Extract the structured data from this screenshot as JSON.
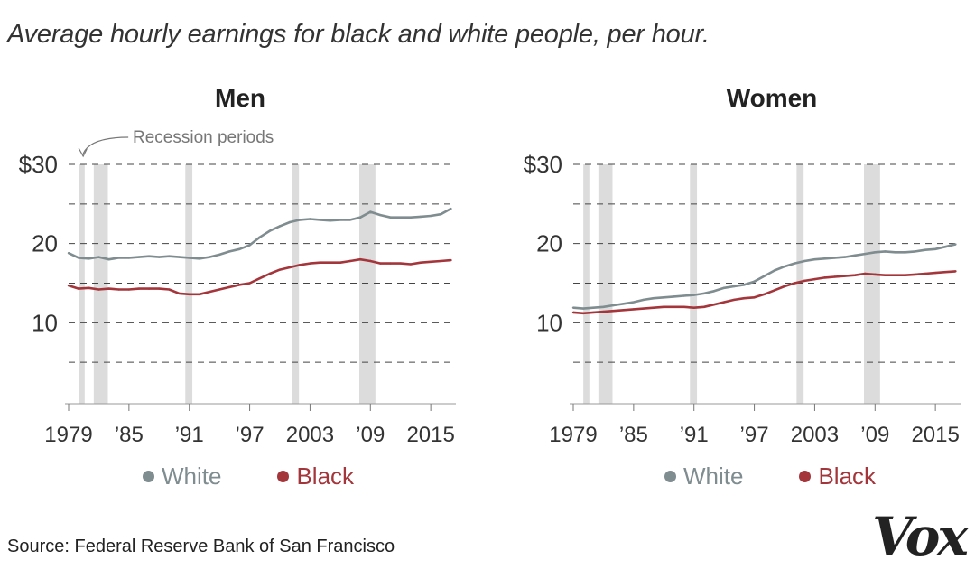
{
  "title": "Average hourly earnings for black and white people, per hour.",
  "source": "Source: Federal Reserve Bank of San Francisco",
  "logo": "Vox",
  "colors": {
    "white_series": "#7f8c90",
    "black_series": "#a4363b",
    "recession": "#dcdcdc",
    "grid": "#444444"
  },
  "chart_data": [
    {
      "type": "line",
      "title": "Men",
      "annotation": "Recession periods",
      "xlim": [
        1979,
        2017.5
      ],
      "ylim": [
        0,
        30
      ],
      "ytick_values": [
        10,
        20,
        30
      ],
      "ytick_labels": [
        "10",
        "20",
        "$30"
      ],
      "xtick_values": [
        1979,
        1985,
        1991,
        1997,
        2003,
        2009,
        2015
      ],
      "xtick_labels": [
        "1979",
        "’85",
        "’91",
        "’97",
        "2003",
        "’09",
        "2015"
      ],
      "recessions": [
        [
          1980.0,
          1980.6
        ],
        [
          1981.5,
          1982.9
        ],
        [
          1990.6,
          1991.3
        ],
        [
          2001.2,
          2001.9
        ],
        [
          2007.9,
          2009.5
        ]
      ],
      "legend": {
        "white": "White",
        "black": "Black"
      },
      "series": [
        {
          "name": "White",
          "color": "#7f8c90",
          "x": [
            1979,
            1980,
            1981,
            1982,
            1983,
            1984,
            1985,
            1986,
            1987,
            1988,
            1989,
            1990,
            1991,
            1992,
            1993,
            1994,
            1995,
            1996,
            1997,
            1998,
            1999,
            2000,
            2001,
            2002,
            2003,
            2004,
            2005,
            2006,
            2007,
            2008,
            2009,
            2010,
            2011,
            2012,
            2013,
            2014,
            2015,
            2016,
            2017
          ],
          "values": [
            18.8,
            18.2,
            18.1,
            18.3,
            18.0,
            18.2,
            18.2,
            18.3,
            18.4,
            18.3,
            18.4,
            18.3,
            18.2,
            18.1,
            18.3,
            18.6,
            19.0,
            19.3,
            19.8,
            20.8,
            21.6,
            22.2,
            22.7,
            23.0,
            23.1,
            23.0,
            22.9,
            23.0,
            23.0,
            23.3,
            24.0,
            23.6,
            23.3,
            23.3,
            23.3,
            23.4,
            23.5,
            23.7,
            24.4
          ]
        },
        {
          "name": "Black",
          "color": "#a4363b",
          "x": [
            1979,
            1980,
            1981,
            1982,
            1983,
            1984,
            1985,
            1986,
            1987,
            1988,
            1989,
            1990,
            1991,
            1992,
            1993,
            1994,
            1995,
            1996,
            1997,
            1998,
            1999,
            2000,
            2001,
            2002,
            2003,
            2004,
            2005,
            2006,
            2007,
            2008,
            2009,
            2010,
            2011,
            2012,
            2013,
            2014,
            2015,
            2016,
            2017
          ],
          "values": [
            14.7,
            14.3,
            14.4,
            14.2,
            14.3,
            14.2,
            14.2,
            14.3,
            14.3,
            14.3,
            14.2,
            13.7,
            13.6,
            13.6,
            13.9,
            14.2,
            14.5,
            14.8,
            15.0,
            15.6,
            16.2,
            16.7,
            17.0,
            17.3,
            17.5,
            17.6,
            17.6,
            17.6,
            17.8,
            18.0,
            17.8,
            17.5,
            17.5,
            17.5,
            17.4,
            17.6,
            17.7,
            17.8,
            17.9
          ]
        }
      ]
    },
    {
      "type": "line",
      "title": "Women",
      "annotation": "",
      "xlim": [
        1979,
        2017.5
      ],
      "ylim": [
        0,
        30
      ],
      "ytick_values": [
        10,
        20,
        30
      ],
      "ytick_labels": [
        "10",
        "20",
        "$30"
      ],
      "xtick_values": [
        1979,
        1985,
        1991,
        1997,
        2003,
        2009,
        2015
      ],
      "xtick_labels": [
        "1979",
        "’85",
        "’91",
        "’97",
        "2003",
        "’09",
        "2015"
      ],
      "recessions": [
        [
          1980.0,
          1980.6
        ],
        [
          1981.5,
          1982.9
        ],
        [
          1990.6,
          1991.3
        ],
        [
          2001.2,
          2001.9
        ],
        [
          2007.9,
          2009.5
        ]
      ],
      "legend": {
        "white": "White",
        "black": "Black"
      },
      "series": [
        {
          "name": "White",
          "color": "#7f8c90",
          "x": [
            1979,
            1980,
            1981,
            1982,
            1983,
            1984,
            1985,
            1986,
            1987,
            1988,
            1989,
            1990,
            1991,
            1992,
            1993,
            1994,
            1995,
            1996,
            1997,
            1998,
            1999,
            2000,
            2001,
            2002,
            2003,
            2004,
            2005,
            2006,
            2007,
            2008,
            2009,
            2010,
            2011,
            2012,
            2013,
            2014,
            2015,
            2016,
            2017
          ],
          "values": [
            11.9,
            11.8,
            11.9,
            12.0,
            12.2,
            12.4,
            12.6,
            12.9,
            13.1,
            13.2,
            13.3,
            13.4,
            13.5,
            13.7,
            14.0,
            14.4,
            14.6,
            14.8,
            15.2,
            15.9,
            16.6,
            17.1,
            17.5,
            17.8,
            18.0,
            18.1,
            18.2,
            18.3,
            18.5,
            18.7,
            18.9,
            19.0,
            18.9,
            18.9,
            19.0,
            19.2,
            19.3,
            19.6,
            19.9
          ]
        },
        {
          "name": "Black",
          "color": "#a4363b",
          "x": [
            1979,
            1980,
            1981,
            1982,
            1983,
            1984,
            1985,
            1986,
            1987,
            1988,
            1989,
            1990,
            1991,
            1992,
            1993,
            1994,
            1995,
            1996,
            1997,
            1998,
            1999,
            2000,
            2001,
            2002,
            2003,
            2004,
            2005,
            2006,
            2007,
            2008,
            2009,
            2010,
            2011,
            2012,
            2013,
            2014,
            2015,
            2016,
            2017
          ],
          "values": [
            11.3,
            11.2,
            11.3,
            11.4,
            11.5,
            11.6,
            11.7,
            11.8,
            11.9,
            12.0,
            12.0,
            12.0,
            11.9,
            12.0,
            12.3,
            12.6,
            12.9,
            13.1,
            13.2,
            13.6,
            14.1,
            14.6,
            15.0,
            15.3,
            15.5,
            15.7,
            15.8,
            15.9,
            16.0,
            16.2,
            16.1,
            16.0,
            16.0,
            16.0,
            16.1,
            16.2,
            16.3,
            16.4,
            16.5
          ]
        }
      ]
    }
  ]
}
